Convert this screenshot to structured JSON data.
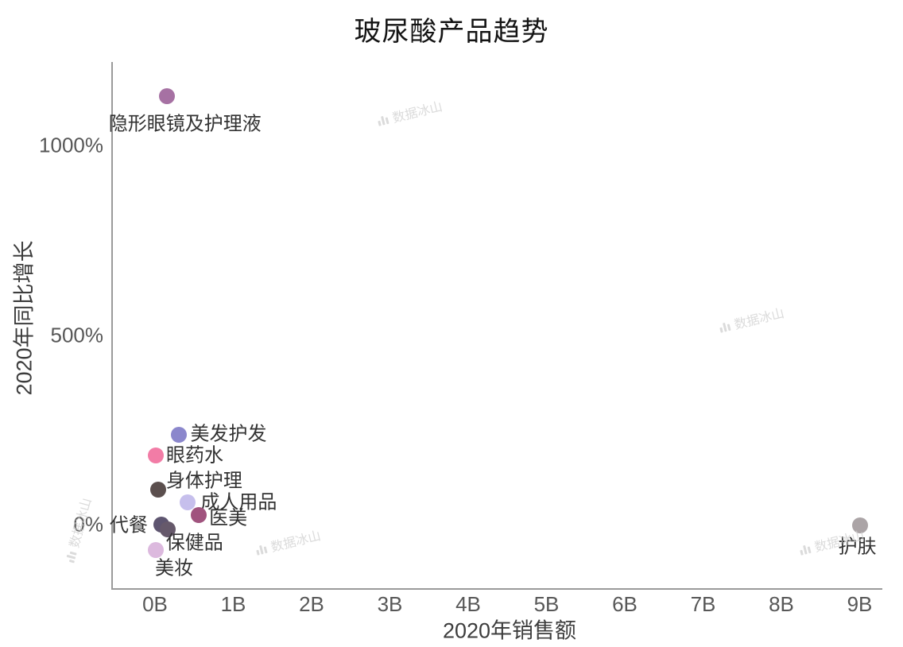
{
  "title": "玻尿酸产品趋势",
  "watermark": {
    "text": "数据冰山"
  },
  "chart_data": {
    "type": "scatter",
    "title": "玻尿酸产品趋势",
    "xlabel": "2020年销售额",
    "ylabel": "2020年同比增长",
    "x_unit": "B (billions)",
    "y_unit": "%",
    "xlim": [
      -0.56,
      9.3
    ],
    "ylim": [
      -168,
      1220
    ],
    "grid": false,
    "legend": "none",
    "x_ticks": [
      {
        "label": "0B",
        "value": 0
      },
      {
        "label": "1B",
        "value": 1
      },
      {
        "label": "2B",
        "value": 2
      },
      {
        "label": "3B",
        "value": 3
      },
      {
        "label": "4B",
        "value": 4
      },
      {
        "label": "5B",
        "value": 5
      },
      {
        "label": "6B",
        "value": 6
      },
      {
        "label": "7B",
        "value": 7
      },
      {
        "label": "8B",
        "value": 8
      },
      {
        "label": "9B",
        "value": 9
      }
    ],
    "y_ticks": [
      {
        "label": "0%",
        "value": 0
      },
      {
        "label": "500%",
        "value": 500
      },
      {
        "label": "1000%",
        "value": 1000
      }
    ],
    "points": [
      {
        "label": "隐形眼镜及护理液",
        "x": 0.15,
        "y": 1130,
        "color": "#a671a3"
      },
      {
        "label": "美发护发",
        "x": 0.3,
        "y": 237,
        "color": "#8b87cc"
      },
      {
        "label": "眼药水",
        "x": 0.01,
        "y": 182,
        "color": "#f27ca6"
      },
      {
        "label": "身体护理",
        "x": 0.04,
        "y": 92,
        "color": "#5b4f4e"
      },
      {
        "label": "成人用品",
        "x": 0.42,
        "y": 59,
        "color": "#c6bfec"
      },
      {
        "label": "医美",
        "x": 0.56,
        "y": 25,
        "color": "#a0537e"
      },
      {
        "label": "代餐",
        "x": 0.08,
        "y": 0,
        "color": "#5e5570"
      },
      {
        "label": "保健品",
        "x": 0.16,
        "y": -12,
        "color": "#66596b"
      },
      {
        "label": "美妆",
        "x": 0.01,
        "y": -67,
        "color": "#dcb9de"
      },
      {
        "label": "护肤",
        "x": 9.0,
        "y": -2,
        "color": "#aba4a6"
      }
    ]
  }
}
